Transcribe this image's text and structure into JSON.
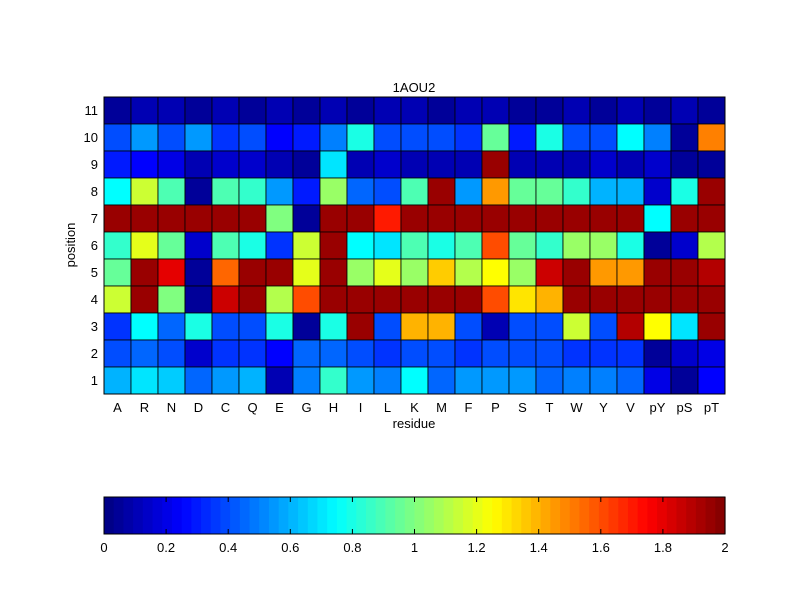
{
  "chart_data": {
    "type": "heatmap",
    "title": "1AOU2",
    "xlabel": "residue",
    "ylabel": "position",
    "x_categories": [
      "A",
      "R",
      "N",
      "D",
      "C",
      "Q",
      "E",
      "G",
      "H",
      "I",
      "L",
      "K",
      "M",
      "F",
      "P",
      "S",
      "T",
      "W",
      "Y",
      "V",
      "pY",
      "pS",
      "pT"
    ],
    "y_categories": [
      "11",
      "10",
      "9",
      "8",
      "7",
      "6",
      "5",
      "4",
      "3",
      "2",
      "1"
    ],
    "values": [
      [
        0.05,
        0.1,
        0.1,
        0.05,
        0.1,
        0.05,
        0.1,
        0.05,
        0.1,
        0.05,
        0.1,
        0.1,
        0.05,
        0.1,
        0.1,
        0.05,
        0.05,
        0.1,
        0.05,
        0.1,
        0.05,
        0.1,
        0.05
      ],
      [
        0.4,
        0.55,
        0.4,
        0.55,
        0.35,
        0.4,
        0.25,
        0.3,
        0.5,
        0.8,
        0.4,
        0.4,
        0.4,
        0.35,
        0.95,
        0.3,
        0.8,
        0.4,
        0.4,
        0.75,
        0.5,
        0.05,
        1.5
      ],
      [
        0.3,
        0.25,
        0.2,
        0.1,
        0.15,
        0.15,
        0.1,
        0.05,
        0.7,
        0.1,
        0.15,
        0.1,
        0.1,
        0.1,
        1.95,
        0.1,
        0.1,
        0.1,
        0.15,
        0.1,
        0.15,
        0.05,
        0.05
      ],
      [
        0.75,
        1.15,
        0.9,
        0.05,
        0.9,
        0.85,
        0.55,
        0.3,
        1.05,
        0.45,
        0.4,
        0.9,
        1.95,
        0.55,
        1.45,
        0.95,
        0.95,
        0.85,
        0.6,
        0.6,
        0.15,
        0.8,
        1.95
      ],
      [
        1.95,
        1.95,
        1.95,
        1.95,
        1.95,
        1.95,
        1.0,
        0.05,
        1.95,
        1.95,
        1.7,
        1.95,
        1.95,
        1.95,
        1.95,
        1.95,
        1.95,
        1.95,
        1.95,
        1.95,
        0.75,
        1.95,
        1.95
      ],
      [
        0.85,
        1.2,
        0.95,
        0.15,
        0.9,
        0.8,
        0.35,
        1.15,
        1.95,
        0.75,
        0.7,
        0.9,
        0.8,
        0.9,
        1.6,
        0.95,
        0.85,
        1.05,
        1.05,
        0.8,
        0.05,
        0.15,
        1.1
      ],
      [
        0.95,
        1.95,
        1.8,
        0.05,
        1.55,
        1.95,
        1.95,
        1.2,
        1.95,
        1.05,
        1.2,
        1.05,
        1.35,
        1.1,
        1.25,
        1.05,
        1.85,
        1.95,
        1.45,
        1.45,
        1.95,
        1.95,
        1.9
      ],
      [
        1.15,
        1.95,
        1.0,
        0.05,
        1.85,
        1.95,
        1.1,
        1.6,
        1.95,
        1.95,
        1.95,
        1.95,
        1.95,
        1.95,
        1.6,
        1.3,
        1.4,
        1.95,
        1.95,
        1.95,
        1.95,
        1.95,
        1.95
      ],
      [
        0.35,
        0.75,
        0.45,
        0.8,
        0.4,
        0.4,
        0.8,
        0.05,
        0.8,
        1.95,
        0.4,
        1.4,
        1.4,
        0.4,
        0.1,
        0.4,
        0.4,
        1.15,
        0.4,
        1.9,
        1.25,
        0.7,
        1.95
      ],
      [
        0.4,
        0.45,
        0.4,
        0.15,
        0.35,
        0.35,
        0.25,
        0.45,
        0.45,
        0.4,
        0.35,
        0.4,
        0.4,
        0.35,
        0.4,
        0.4,
        0.4,
        0.35,
        0.35,
        0.35,
        0.05,
        0.15,
        0.2
      ],
      [
        0.6,
        0.7,
        0.65,
        0.45,
        0.55,
        0.6,
        0.1,
        0.5,
        0.85,
        0.55,
        0.5,
        0.75,
        0.45,
        0.55,
        0.55,
        0.55,
        0.45,
        0.5,
        0.5,
        0.45,
        0.2,
        0.05,
        0.25
      ]
    ],
    "colorbar": {
      "ticks": [
        "0",
        "0.2",
        "0.4",
        "0.6",
        "0.8",
        "1",
        "1.2",
        "1.4",
        "1.6",
        "1.8",
        "2"
      ],
      "range": [
        0,
        2
      ],
      "colormap": "jet"
    }
  }
}
